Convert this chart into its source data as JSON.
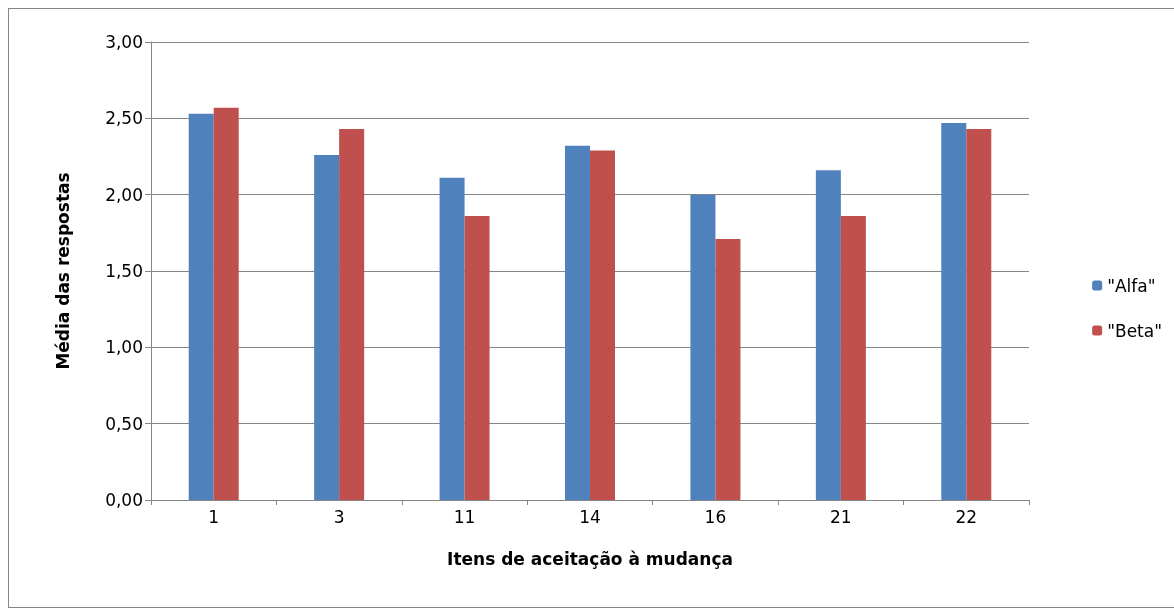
{
  "chart_data": {
    "type": "bar",
    "xlabel": "Itens de aceitação à mudança",
    "ylabel": "Média das respostas",
    "categories": [
      "1",
      "3",
      "11",
      "14",
      "16",
      "21",
      "22"
    ],
    "series": [
      {
        "name": "\"Alfa\"",
        "color": "#4f81bd",
        "values": [
          2.53,
          2.26,
          2.11,
          2.32,
          2.0,
          2.16,
          2.47
        ]
      },
      {
        "name": "\"Beta\"",
        "color": "#c0504d",
        "values": [
          2.57,
          2.43,
          1.86,
          2.29,
          1.71,
          1.86,
          2.43
        ]
      }
    ],
    "ylim": [
      0,
      3
    ],
    "yticks": [
      {
        "value": 0,
        "label": "0,00"
      },
      {
        "value": 0.5,
        "label": "0,50"
      },
      {
        "value": 1,
        "label": "1,00"
      },
      {
        "value": 1.5,
        "label": "1,50"
      },
      {
        "value": 2,
        "label": "2,00"
      },
      {
        "value": 2.5,
        "label": "2,50"
      },
      {
        "value": 3,
        "label": "3,00"
      }
    ],
    "grid": "y",
    "legend": "right"
  }
}
